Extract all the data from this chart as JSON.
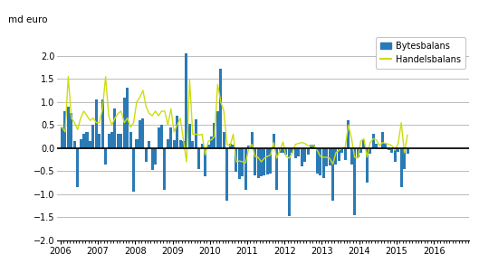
{
  "title": "",
  "ylabel": "md euro",
  "ylim": [
    -2.0,
    2.5
  ],
  "yticks": [
    -2.0,
    -1.5,
    -1.0,
    -0.5,
    0.0,
    0.5,
    1.0,
    1.5,
    2.0
  ],
  "bar_color": "#2a7ab5",
  "line_color": "#ccdd11",
  "background_color": "#ffffff",
  "grid_color": "#bbbbbb",
  "x_labels": [
    "2006",
    "2007",
    "2008",
    "2009",
    "2010",
    "2011",
    "2012",
    "2013",
    "2014",
    "2015",
    "2016"
  ],
  "bytesbalans": [
    0.45,
    0.8,
    0.9,
    0.75,
    0.15,
    -0.85,
    0.2,
    0.3,
    0.35,
    0.15,
    0.5,
    1.05,
    0.3,
    1.05,
    -0.35,
    0.3,
    0.35,
    0.85,
    0.3,
    0.3,
    1.1,
    1.3,
    0.35,
    -0.95,
    0.2,
    0.6,
    0.65,
    -0.3,
    0.15,
    -0.47,
    -0.35,
    0.45,
    0.5,
    -0.9,
    0.2,
    0.45,
    0.18,
    0.7,
    0.18,
    0.15,
    2.05,
    0.53,
    0.15,
    0.63,
    -0.45,
    0.1,
    -0.62,
    0.08,
    0.25,
    0.55,
    0.8,
    1.72,
    0.35,
    -1.15,
    0.1,
    0.07,
    -0.52,
    -0.68,
    -0.62,
    -0.9,
    0.05,
    0.35,
    -0.6,
    -0.65,
    -0.62,
    -0.6,
    -0.58,
    -0.55,
    0.3,
    -0.9,
    -0.1,
    -0.1,
    -0.15,
    -1.47,
    -0.1,
    -0.22,
    -0.18,
    -0.4,
    -0.3,
    -0.15,
    0.08,
    0.08,
    -0.55,
    -0.6,
    -0.65,
    -0.4,
    -0.38,
    -1.15,
    -0.35,
    -0.28,
    -0.1,
    -0.25,
    0.6,
    -0.35,
    -1.45,
    -0.2,
    -0.1,
    0.17,
    -0.75,
    -0.12,
    0.3,
    0.1,
    -0.03,
    0.35,
    0.1,
    -0.05,
    -0.1,
    -0.3,
    -0.08,
    -0.85,
    -0.45,
    -0.12
  ],
  "handelsbalans": [
    0.45,
    0.35,
    1.55,
    0.65,
    0.55,
    0.4,
    0.65,
    0.8,
    0.7,
    0.6,
    0.65,
    0.55,
    0.55,
    0.85,
    1.55,
    0.7,
    0.5,
    0.65,
    0.75,
    0.8,
    0.55,
    0.65,
    0.45,
    0.55,
    1.0,
    1.1,
    1.25,
    0.9,
    0.75,
    0.7,
    0.8,
    0.7,
    0.8,
    0.8,
    0.5,
    0.85,
    0.35,
    0.5,
    0.65,
    0.18,
    -0.3,
    1.48,
    0.3,
    0.3,
    0.28,
    0.3,
    -0.15,
    0.15,
    0.18,
    0.25,
    1.38,
    1.0,
    0.8,
    0.08,
    0.05,
    0.3,
    -0.3,
    -0.28,
    -0.3,
    -0.32,
    0.0,
    0.08,
    -0.18,
    -0.2,
    -0.3,
    -0.22,
    -0.18,
    -0.15,
    0.12,
    -0.22,
    -0.05,
    0.13,
    -0.18,
    -0.22,
    -0.1,
    0.08,
    0.1,
    0.12,
    0.1,
    0.05,
    0.05,
    0.05,
    -0.05,
    -0.18,
    -0.2,
    -0.2,
    -0.22,
    -0.35,
    -0.1,
    -0.05,
    0.0,
    0.02,
    0.5,
    0.22,
    -0.2,
    -0.22,
    0.15,
    0.2,
    -0.2,
    0.12,
    0.2,
    0.18,
    0.05,
    0.12,
    0.1,
    0.08,
    0.05,
    -0.05,
    0.1,
    0.55,
    -0.1,
    0.28
  ]
}
